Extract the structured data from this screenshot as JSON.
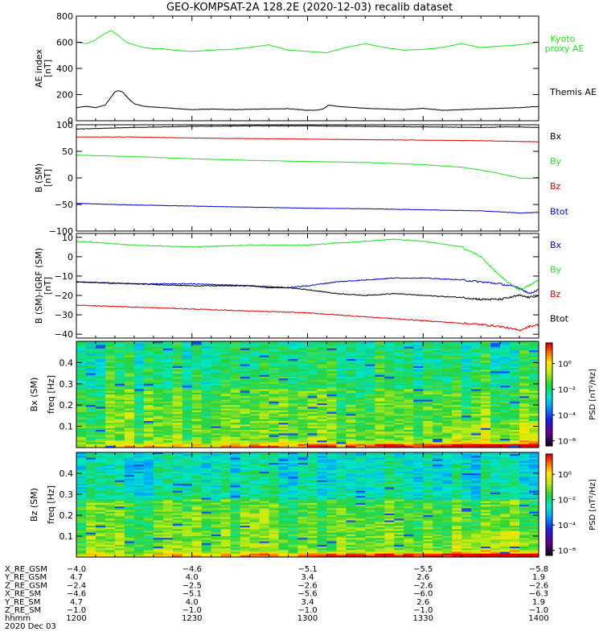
{
  "title": "GEO-KOMPSAT-2A 128.2E (2020-12-03) recalib dataset",
  "colors": {
    "black": "#000000",
    "red": "#e00000",
    "green": "#22e022",
    "blue": "#0000cc"
  },
  "chart_data": [
    {
      "type": "line",
      "ylabel": [
        "AE index",
        "[nT]"
      ],
      "ylim": [
        0,
        800
      ],
      "yticks": [
        0,
        200,
        400,
        600,
        800
      ],
      "series": [
        {
          "name": "Kyoto proxy AE",
          "color": "#22e022",
          "x": [
            0,
            10,
            18,
            28,
            36,
            44,
            52,
            60,
            70,
            80,
            90,
            100,
            120,
            140,
            160,
            180,
            200,
            220,
            240,
            260,
            280,
            300,
            320,
            340,
            360,
            380,
            400,
            420,
            440,
            460,
            470,
            480
          ],
          "values": [
            600,
            590,
            610,
            660,
            690,
            650,
            600,
            580,
            560,
            550,
            550,
            540,
            530,
            540,
            545,
            560,
            580,
            540,
            530,
            520,
            560,
            590,
            560,
            540,
            545,
            560,
            590,
            560,
            570,
            580,
            590,
            600
          ]
        },
        {
          "name": "Themis AE",
          "color": "#000000",
          "x": [
            0,
            10,
            20,
            30,
            36,
            40,
            44,
            48,
            54,
            60,
            70,
            80,
            100,
            120,
            140,
            160,
            180,
            200,
            220,
            240,
            250,
            256,
            262,
            270,
            280,
            300,
            320,
            340,
            360,
            380,
            400,
            420,
            440,
            460,
            470,
            480
          ],
          "values": [
            100,
            110,
            100,
            120,
            180,
            220,
            230,
            220,
            170,
            130,
            110,
            105,
            95,
            85,
            90,
            85,
            88,
            90,
            92,
            80,
            82,
            90,
            120,
            110,
            105,
            95,
            90,
            85,
            95,
            80,
            85,
            90,
            95,
            100,
            105,
            110
          ]
        }
      ]
    },
    {
      "type": "line",
      "ylabel": [
        "B (SM)",
        "[nT]"
      ],
      "ylim": [
        -100,
        100
      ],
      "yticks": [
        -100,
        -50,
        0,
        50,
        100
      ],
      "series": [
        {
          "name": "Bx",
          "color": "#000000",
          "x": [
            0,
            60,
            120,
            180,
            240,
            300,
            360,
            420,
            450,
            480
          ],
          "values": [
            92,
            95,
            97,
            98,
            98,
            97,
            96,
            95,
            96,
            95
          ]
        },
        {
          "name": "By",
          "color": "#22e022",
          "x": [
            0,
            60,
            120,
            180,
            240,
            300,
            360,
            400,
            420,
            440,
            460,
            470,
            480
          ],
          "values": [
            43,
            40,
            36,
            33,
            31,
            29,
            25,
            20,
            15,
            8,
            0,
            -1,
            1
          ]
        },
        {
          "name": "Bz",
          "color": "#e00000",
          "x": [
            0,
            60,
            120,
            180,
            240,
            300,
            360,
            420,
            480
          ],
          "values": [
            77,
            77,
            75,
            74,
            73,
            72,
            71,
            70,
            68
          ]
        },
        {
          "name": "Btot",
          "color": "#0000cc",
          "x": [
            0,
            60,
            120,
            180,
            240,
            300,
            360,
            420,
            460,
            480
          ],
          "values": [
            -48,
            -51,
            -53,
            -55,
            -57,
            -58,
            -60,
            -62,
            -66,
            -65
          ]
        }
      ]
    },
    {
      "type": "line",
      "ylabel": [
        "B (SM)-IGRF (SM)",
        "[nT]"
      ],
      "ylim": [
        -42,
        12
      ],
      "yticks": [
        -40,
        -30,
        -20,
        -10,
        0,
        10
      ],
      "series": [
        {
          "name": "Bx",
          "color": "#0000cc",
          "x": [
            0,
            60,
            120,
            180,
            200,
            220,
            240,
            270,
            300,
            330,
            360,
            400,
            420,
            440,
            460,
            470,
            480
          ],
          "values": [
            -13,
            -14,
            -14,
            -15,
            -16,
            -16,
            -15,
            -13,
            -12,
            -11,
            -11,
            -12,
            -13,
            -14,
            -16,
            -19,
            -17
          ]
        },
        {
          "name": "By",
          "color": "#22e022",
          "x": [
            0,
            30,
            60,
            120,
            180,
            240,
            270,
            300,
            330,
            360,
            400,
            420,
            430,
            440,
            450,
            460,
            470,
            480
          ],
          "values": [
            8,
            7,
            6,
            5,
            6,
            6,
            7,
            8,
            9,
            8,
            5,
            0,
            -5,
            -10,
            -14,
            -17,
            -15,
            -12
          ]
        },
        {
          "name": "Bz",
          "color": "#e00000",
          "x": [
            0,
            60,
            120,
            180,
            240,
            300,
            360,
            420,
            440,
            460,
            470,
            480
          ],
          "values": [
            -25,
            -26,
            -27,
            -28,
            -29,
            -31,
            -33,
            -35,
            -36,
            -38,
            -36,
            -35
          ]
        },
        {
          "name": "Btot",
          "color": "#000000",
          "x": [
            0,
            60,
            120,
            180,
            220,
            240,
            270,
            300,
            330,
            360,
            400,
            420,
            440,
            460,
            470,
            480
          ],
          "values": [
            -13,
            -14,
            -15,
            -15,
            -16,
            -17,
            -19,
            -20,
            -19,
            -20,
            -21,
            -22,
            -22,
            -20,
            -21,
            -20
          ]
        }
      ]
    },
    {
      "type": "heatmap",
      "panel_label": "Bx (SM)",
      "ylabel": "freq [Hz]",
      "yticks": [
        0.1,
        0.2,
        0.3,
        0.4
      ],
      "colorbar": {
        "label": "PSD [nT²/Hz]",
        "ticks": [
          "10⁰",
          "10⁻²",
          "10⁻⁴",
          "10⁻⁶"
        ]
      }
    },
    {
      "type": "heatmap",
      "panel_label": "Bz (SM)",
      "ylabel": "freq [Hz]",
      "yticks": [
        0.1,
        0.2,
        0.3,
        0.4
      ],
      "colorbar": {
        "label": "PSD [nT²/Hz]",
        "ticks": [
          "10⁰",
          "10⁻²",
          "10⁻⁴",
          "10⁻⁶"
        ]
      }
    }
  ],
  "ephemeris": {
    "rows": [
      {
        "label": "X_RE_GSM",
        "values": [
          "-4.0",
          "-4.6",
          "-5.1",
          "-5.5",
          "-5.8"
        ]
      },
      {
        "label": "Y_RE_GSM",
        "values": [
          "4.7",
          "4.0",
          "3.4",
          "2.6",
          "1.9"
        ]
      },
      {
        "label": "Z_RE_GSM",
        "values": [
          "-2.4",
          "-2.5",
          "-2.6",
          "-2.6",
          "-2.6"
        ]
      },
      {
        "label": "X_RE_SM",
        "values": [
          "-4.6",
          "-5.1",
          "-5.6",
          "-6.0",
          "-6.3"
        ]
      },
      {
        "label": "Y_RE_SM",
        "values": [
          "4.7",
          "4.0",
          "3.4",
          "2.6",
          "1.9"
        ]
      },
      {
        "label": "Z_RE_SM",
        "values": [
          "-1.0",
          "-1.0",
          "-1.0",
          "-1.0",
          "-1.0"
        ]
      },
      {
        "label": "hhmm",
        "values": [
          "1200",
          "1230",
          "1300",
          "1330",
          "1400"
        ]
      }
    ],
    "date": "2020 Dec 03"
  }
}
